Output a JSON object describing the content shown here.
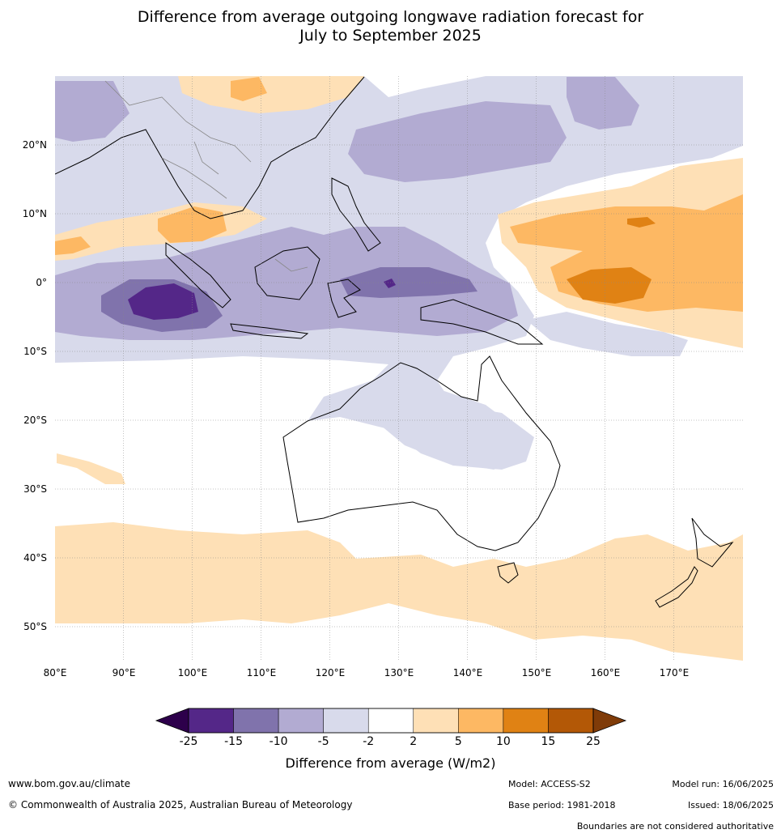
{
  "title": {
    "line1": "Difference from average outgoing longwave radiation forecast for",
    "line2": "July to September 2025"
  },
  "map": {
    "lon_range": [
      80,
      180
    ],
    "lat_range": [
      -55,
      30
    ],
    "lat_labels": [
      "20°N",
      "10°N",
      "0°",
      "10°S",
      "20°S",
      "30°S",
      "40°S",
      "50°S"
    ],
    "lon_labels": [
      "80°E",
      "90°E",
      "100°E",
      "110°E",
      "120°E",
      "130°E",
      "140°E",
      "150°E",
      "160°E",
      "170°E"
    ],
    "anomaly_colors": {
      "below_-25": "#2d004b",
      "-25_-15": "#542788",
      "-15_-10": "#8073ac",
      "-10_-5": "#b2abd2",
      "-5_-2": "#d8daeb",
      "-2_2": "#ffffff",
      "2_5": "#fee0b6",
      "5_10": "#fdb863",
      "10_15": "#e08214",
      "15_25": "#b35806",
      "above_25": "#7f3b08"
    }
  },
  "colorbar": {
    "labels": [
      "-25",
      "-15",
      "-10",
      "-5",
      "-2",
      "2",
      "5",
      "10",
      "15",
      "25"
    ],
    "colors": [
      "#542788",
      "#8073ac",
      "#b2abd2",
      "#d8daeb",
      "#ffffff",
      "#fee0b6",
      "#fdb863",
      "#e08214",
      "#b35806"
    ],
    "low_extend_color": "#2d004b",
    "high_extend_color": "#7f3b08",
    "title": "Difference from average (W/m2)"
  },
  "footer": {
    "website": "www.bom.gov.au/climate",
    "copyright": "© Commonwealth of Australia 2025, Australian Bureau of Meteorology",
    "model": "Model: ACCESS-S2",
    "base_period": "Base period: 1981-2018",
    "model_run": "Model run: 16/06/2025",
    "issued": "Issued: 18/06/2025",
    "disclaimer": "Boundaries are not considered authoritative"
  }
}
